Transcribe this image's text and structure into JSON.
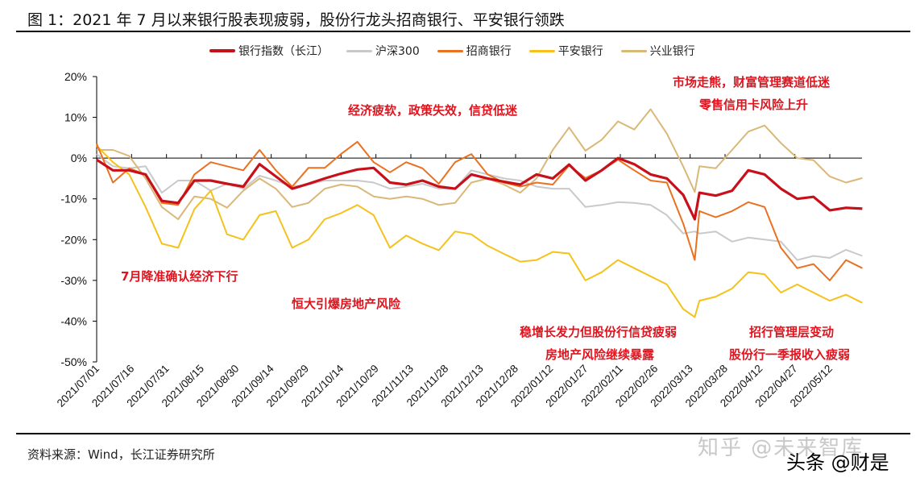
{
  "title": "图 1：2021 年 7 月以来银行股表现疲弱，股份行龙头招商银行、平安银行领跌",
  "source": "资料来源：Wind，长江证券研究所",
  "watermarks": [
    "知乎 @未来智库",
    "头条 @财是"
  ],
  "chart_data": {
    "type": "line",
    "title": "",
    "xlabel": "",
    "ylabel": "",
    "legend_position": "top",
    "grid": false,
    "ylim": [
      -50,
      20
    ],
    "y_ticks": [
      "20%",
      "10%",
      "0%",
      "-10%",
      "-20%",
      "-30%",
      "-40%",
      "-50%"
    ],
    "x_ticks": [
      "2021/07/01",
      "2021/07/16",
      "2021/07/31",
      "2021/08/15",
      "2021/08/30",
      "2021/09/14",
      "2021/09/29",
      "2021/10/14",
      "2021/10/29",
      "2021/11/13",
      "2021/11/28",
      "2021/12/13",
      "2021/12/28",
      "2022/01/12",
      "2022/01/27",
      "2022/02/11",
      "2022/02/26",
      "2022/03/13",
      "2022/03/28",
      "2022/04/12",
      "2022/04/27",
      "2022/05/12"
    ],
    "x": [
      "2021/07/01",
      "2021/07/08",
      "2021/07/15",
      "2021/07/22",
      "2021/07/29",
      "2021/08/05",
      "2021/08/12",
      "2021/08/19",
      "2021/08/26",
      "2021/09/02",
      "2021/09/09",
      "2021/09/16",
      "2021/09/23",
      "2021/09/30",
      "2021/10/07",
      "2021/10/14",
      "2021/10/21",
      "2021/10/28",
      "2021/11/04",
      "2021/11/11",
      "2021/11/18",
      "2021/11/25",
      "2021/12/02",
      "2021/12/09",
      "2021/12/16",
      "2021/12/23",
      "2021/12/30",
      "2022/01/06",
      "2022/01/13",
      "2022/01/20",
      "2022/01/27",
      "2022/02/03",
      "2022/02/10",
      "2022/02/17",
      "2022/02/24",
      "2022/03/03",
      "2022/03/10",
      "2022/03/15",
      "2022/03/17",
      "2022/03/24",
      "2022/03/31",
      "2022/04/07",
      "2022/04/14",
      "2022/04/21",
      "2022/04/28",
      "2022/05/05",
      "2022/05/12",
      "2022/05/19",
      "2022/05/26"
    ],
    "series": [
      {
        "name": "沪深300",
        "color": "#c9c9c9",
        "values": [
          1,
          -2,
          -2.5,
          -2,
          -8.5,
          -5.5,
          -5.5,
          -8,
          -6.3,
          -7.5,
          -4.3,
          -5.5,
          -7,
          -6.5,
          -5.5,
          -5.5,
          -5.5,
          -6,
          -7.5,
          -7,
          -6.3,
          -7.5,
          -7.5,
          -3,
          -4,
          -5,
          -5.5,
          -7,
          -7.5,
          -7.5,
          -12,
          -11.5,
          -10.8,
          -11,
          -11.5,
          -14,
          -18.5,
          -18,
          -18.5,
          -18,
          -20.5,
          -19.5,
          -20,
          -20.5,
          -25,
          -24,
          -24.5,
          -22.5,
          -24
        ]
      },
      {
        "name": "兴业银行",
        "color": "#d9b878",
        "values": [
          2,
          2,
          0.5,
          -5,
          -12,
          -15,
          -9.4,
          -10,
          -12.2,
          -8,
          -5,
          -7.5,
          -12,
          -11,
          -7.5,
          -6.5,
          -7,
          -9.4,
          -10,
          -9.4,
          -10,
          -11.5,
          -11,
          -6,
          -5,
          -6.5,
          -8.5,
          -5,
          2,
          7.5,
          1.8,
          4.5,
          9,
          7,
          12,
          6,
          -2,
          -8.3,
          -2,
          -2.5,
          2,
          6.5,
          8,
          3.7,
          0,
          -0.5,
          -4.5,
          -6,
          -4.9
        ]
      },
      {
        "name": "平安银行",
        "color": "#f4c21a",
        "values": [
          3,
          -1,
          -4,
          -12,
          -21,
          -22,
          -12.5,
          -8,
          -18.7,
          -20,
          -14,
          -13,
          -22,
          -20,
          -15,
          -13.5,
          -11.5,
          -14,
          -22,
          -19,
          -21,
          -22.6,
          -18,
          -18.7,
          -21.5,
          -23.5,
          -25.4,
          -25,
          -23,
          -23.4,
          -30,
          -28,
          -25,
          -27,
          -29,
          -31,
          -37,
          -39,
          -35,
          -34,
          -32,
          -28,
          -28.5,
          -33,
          -31,
          -33,
          -35,
          -33.5,
          -35.5
        ]
      },
      {
        "name": "招商银行",
        "color": "#ea7120",
        "values": [
          3.5,
          -6,
          -2.5,
          -4,
          -11,
          -11.5,
          -4,
          -1,
          -2,
          -3,
          2,
          -3,
          -7,
          -2.4,
          -2.4,
          1,
          4,
          -1,
          -3.5,
          -1,
          -2.5,
          -6.3,
          -1,
          1,
          -4,
          -6,
          -7,
          -6,
          -6.5,
          -1.8,
          -4.9,
          -3,
          -0.4,
          -3,
          -5.5,
          -6,
          -16,
          -25,
          -13,
          -14.5,
          -13,
          -10.8,
          -12,
          -22,
          -27,
          -26,
          -30,
          -25,
          -27
        ]
      },
      {
        "name": "银行指数（长江）",
        "color": "#c8101a",
        "values": [
          -0.4,
          -3,
          -3,
          -4,
          -10.5,
          -11,
          -5.5,
          -5.5,
          -6.3,
          -7,
          -1.5,
          -4.5,
          -7.5,
          -6.3,
          -5,
          -3.8,
          -2.8,
          -2.4,
          -6,
          -6.5,
          -5.5,
          -7,
          -7.5,
          -4,
          -5,
          -5.8,
          -6.5,
          -4,
          -5,
          -1.6,
          -5.5,
          -3,
          0,
          -1.5,
          -4,
          -5,
          -9,
          -15,
          -8.5,
          -9.2,
          -8,
          -3,
          -4,
          -7.5,
          -10,
          -9.5,
          -12.8,
          -12.2,
          -12.4
        ]
      }
    ],
    "legend": [
      {
        "name": "银行指数（长江）",
        "color": "#c8101a"
      },
      {
        "name": "沪深300",
        "color": "#c9c9c9"
      },
      {
        "name": "招商银行",
        "color": "#ea7120"
      },
      {
        "name": "平安银行",
        "color": "#f4c21a"
      },
      {
        "name": "兴业银行",
        "color": "#d9b878"
      }
    ],
    "annotations": [
      "7月降准确认经济下行",
      "恒大引爆房地产风险",
      "经济疲软，政策失效，信贷低迷",
      "稳增长发力但股份行信贷疲弱",
      "房地产风险继续暴露",
      "市场走熊，财富管理赛道低迷",
      "零售信用卡风险上升",
      "招行管理层变动",
      "股份行一季报收入疲弱"
    ],
    "annotation_color": "#e0141e"
  }
}
